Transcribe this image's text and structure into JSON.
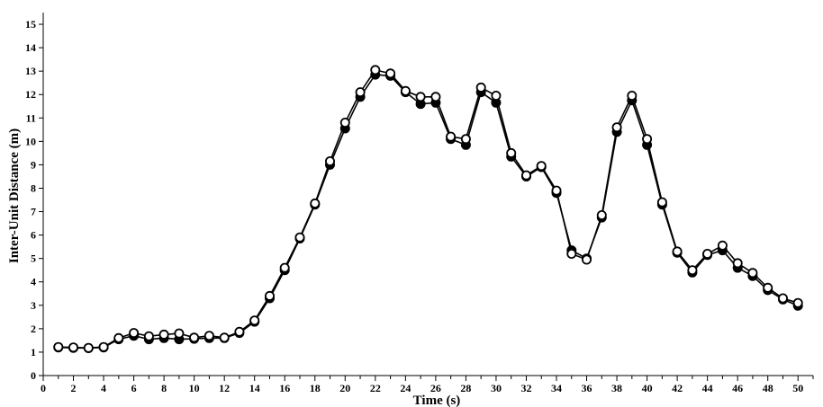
{
  "chart_data": {
    "type": "line",
    "title": "",
    "xlabel": "Time (s)",
    "ylabel": "Inter-Unit Distance (m)",
    "xlim": [
      0,
      51
    ],
    "ylim": [
      0,
      15.5
    ],
    "x_ticks": [
      0,
      2,
      4,
      6,
      8,
      10,
      12,
      14,
      16,
      18,
      20,
      22,
      24,
      26,
      28,
      30,
      32,
      34,
      36,
      38,
      40,
      42,
      44,
      46,
      48,
      50
    ],
    "y_ticks": [
      0,
      1,
      2,
      3,
      4,
      5,
      6,
      7,
      8,
      9,
      10,
      11,
      12,
      13,
      14,
      15
    ],
    "grid": false,
    "legend": "none",
    "x": [
      1,
      2,
      3,
      4,
      5,
      6,
      7,
      8,
      9,
      10,
      11,
      12,
      13,
      14,
      15,
      16,
      17,
      18,
      19,
      20,
      21,
      22,
      23,
      24,
      25,
      26,
      27,
      28,
      29,
      30,
      31,
      32,
      33,
      34,
      35,
      36,
      37,
      38,
      39,
      40,
      41,
      42,
      43,
      44,
      45,
      46,
      47,
      48,
      49,
      50
    ],
    "series": [
      {
        "marker": "filled",
        "color": "#000000",
        "values": [
          1.2,
          1.18,
          1.17,
          1.2,
          1.55,
          1.7,
          1.55,
          1.6,
          1.55,
          1.57,
          1.6,
          1.6,
          1.82,
          2.3,
          3.3,
          4.5,
          5.85,
          7.3,
          9.0,
          10.55,
          11.9,
          12.85,
          12.8,
          12.1,
          11.6,
          11.65,
          10.1,
          9.85,
          12.1,
          11.65,
          9.35,
          8.5,
          8.9,
          7.8,
          5.35,
          5.0,
          6.75,
          10.4,
          11.75,
          9.85,
          7.3,
          5.25,
          4.4,
          5.15,
          5.35,
          4.6,
          4.25,
          3.65,
          3.25,
          2.98
        ]
      },
      {
        "marker": "hollow",
        "color": "#000000",
        "values": [
          1.22,
          1.2,
          1.18,
          1.22,
          1.6,
          1.82,
          1.68,
          1.75,
          1.8,
          1.62,
          1.7,
          1.62,
          1.87,
          2.35,
          3.4,
          4.6,
          5.9,
          7.35,
          9.15,
          10.8,
          12.1,
          13.05,
          12.9,
          12.15,
          11.9,
          11.9,
          10.2,
          10.1,
          12.3,
          11.95,
          9.5,
          8.55,
          8.95,
          7.9,
          5.2,
          4.95,
          6.85,
          10.6,
          11.95,
          10.1,
          7.4,
          5.3,
          4.5,
          5.2,
          5.55,
          4.8,
          4.38,
          3.75,
          3.3,
          3.1
        ]
      }
    ]
  }
}
